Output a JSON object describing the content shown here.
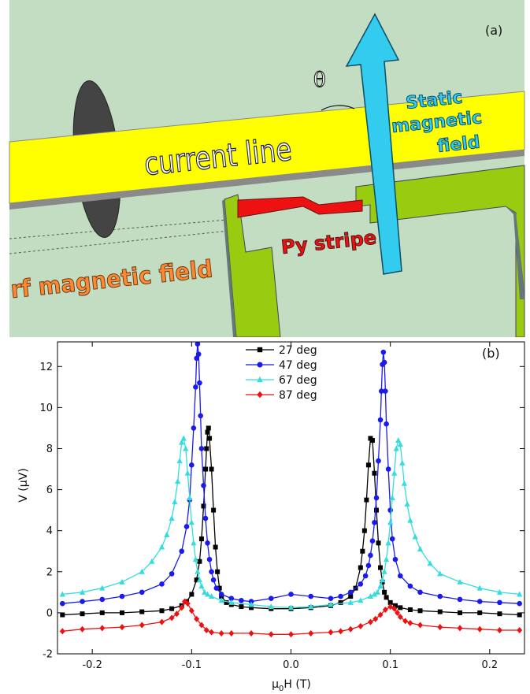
{
  "figure_a": {
    "panel_label": "(a)",
    "labels": {
      "theta": "θ",
      "static_line1": "Static",
      "static_line2": "magnetic",
      "static_line3": "field",
      "current_line": "current line",
      "py_stripe": "Py stripe",
      "rf_field": "rf magnetic field"
    },
    "colors": {
      "background": "#c2ddc2",
      "current_line": "#ffff00",
      "arrow": "#33ccee",
      "stripe": "#ee1111",
      "contacts": "#99cc11",
      "coil": "#444444",
      "rf_text": "#ff8833",
      "static_text": "#33ccee"
    }
  },
  "chart_data": {
    "type": "scatter",
    "panel_label": "(b)",
    "xlabel_main": "μ",
    "xlabel_sub": "0",
    "xlabel_rest": "H (T)",
    "ylabel": "V (μV)",
    "xlim": [
      -0.235,
      0.235
    ],
    "ylim": [
      -2,
      13.2
    ],
    "xticks": [
      -0.2,
      -0.1,
      0.0,
      0.1,
      0.2
    ],
    "xtick_labels": [
      "-0.2",
      "-0.1",
      "0.0",
      "0.1",
      "0.2"
    ],
    "yticks": [
      -2,
      0,
      2,
      4,
      6,
      8,
      10,
      12
    ],
    "ytick_labels": [
      "-2",
      "0",
      "2",
      "4",
      "6",
      "8",
      "10",
      "12"
    ],
    "legend_placement": "top-center",
    "grid": false,
    "series": [
      {
        "name": "27 deg",
        "color": "#000000",
        "marker": "square",
        "x": [
          -0.23,
          -0.21,
          -0.19,
          -0.17,
          -0.15,
          -0.13,
          -0.12,
          -0.11,
          -0.105,
          -0.1,
          -0.095,
          -0.092,
          -0.09,
          -0.088,
          -0.086,
          -0.085,
          -0.084,
          -0.083,
          -0.082,
          -0.08,
          -0.078,
          -0.076,
          -0.074,
          -0.072,
          -0.07,
          -0.065,
          -0.06,
          -0.05,
          -0.04,
          -0.02,
          0.0,
          0.02,
          0.04,
          0.05,
          0.06,
          0.065,
          0.07,
          0.072,
          0.074,
          0.076,
          0.078,
          0.08,
          0.082,
          0.084,
          0.086,
          0.088,
          0.09,
          0.092,
          0.094,
          0.096,
          0.1,
          0.105,
          0.11,
          0.12,
          0.13,
          0.15,
          0.17,
          0.19,
          0.21,
          0.23
        ],
        "y": [
          -0.1,
          -0.05,
          0.0,
          0.0,
          0.05,
          0.1,
          0.2,
          0.35,
          0.55,
          0.9,
          1.6,
          2.5,
          3.6,
          5.2,
          7.0,
          8.0,
          8.8,
          9.0,
          8.5,
          7.0,
          5.0,
          3.2,
          2.0,
          1.2,
          0.8,
          0.5,
          0.4,
          0.3,
          0.25,
          0.2,
          0.2,
          0.25,
          0.35,
          0.5,
          0.8,
          1.2,
          2.2,
          3.0,
          4.0,
          5.5,
          7.2,
          8.5,
          8.4,
          6.8,
          5.0,
          3.4,
          2.2,
          1.5,
          1.0,
          0.75,
          0.5,
          0.35,
          0.25,
          0.15,
          0.1,
          0.05,
          0.0,
          0.0,
          -0.05,
          -0.1
        ]
      },
      {
        "name": "47 deg",
        "color": "#1a1aee",
        "marker": "circle",
        "x": [
          -0.23,
          -0.21,
          -0.19,
          -0.17,
          -0.15,
          -0.13,
          -0.12,
          -0.11,
          -0.105,
          -0.102,
          -0.1,
          -0.098,
          -0.096,
          -0.095,
          -0.094,
          -0.093,
          -0.092,
          -0.091,
          -0.09,
          -0.088,
          -0.086,
          -0.084,
          -0.082,
          -0.08,
          -0.078,
          -0.075,
          -0.07,
          -0.06,
          -0.05,
          -0.04,
          -0.02,
          0.0,
          0.02,
          0.04,
          0.05,
          0.06,
          0.07,
          0.075,
          0.078,
          0.08,
          0.082,
          0.084,
          0.086,
          0.088,
          0.09,
          0.091,
          0.092,
          0.093,
          0.094,
          0.095,
          0.096,
          0.098,
          0.1,
          0.102,
          0.105,
          0.11,
          0.12,
          0.13,
          0.15,
          0.17,
          0.19,
          0.21,
          0.23
        ],
        "y": [
          0.45,
          0.55,
          0.65,
          0.8,
          1.0,
          1.4,
          1.9,
          3.0,
          4.2,
          5.5,
          7.2,
          9.0,
          11.0,
          12.4,
          13.1,
          12.6,
          11.2,
          9.6,
          8.0,
          6.2,
          4.6,
          3.4,
          2.6,
          2.0,
          1.6,
          1.2,
          0.9,
          0.7,
          0.6,
          0.55,
          0.7,
          0.9,
          0.8,
          0.7,
          0.8,
          1.0,
          1.4,
          1.8,
          2.3,
          2.8,
          3.5,
          4.4,
          5.6,
          7.4,
          9.4,
          10.8,
          12.1,
          12.7,
          12.2,
          10.8,
          9.2,
          7.0,
          5.0,
          3.6,
          2.6,
          1.8,
          1.3,
          1.0,
          0.8,
          0.65,
          0.55,
          0.5,
          0.45
        ]
      },
      {
        "name": "67 deg",
        "color": "#33dddd",
        "marker": "triangle",
        "x": [
          -0.23,
          -0.21,
          -0.19,
          -0.17,
          -0.15,
          -0.14,
          -0.13,
          -0.125,
          -0.12,
          -0.117,
          -0.114,
          -0.112,
          -0.11,
          -0.108,
          -0.106,
          -0.104,
          -0.102,
          -0.1,
          -0.098,
          -0.096,
          -0.094,
          -0.092,
          -0.09,
          -0.087,
          -0.084,
          -0.08,
          -0.07,
          -0.06,
          -0.04,
          -0.02,
          0.0,
          0.02,
          0.04,
          0.06,
          0.07,
          0.08,
          0.084,
          0.087,
          0.09,
          0.092,
          0.094,
          0.096,
          0.098,
          0.1,
          0.102,
          0.104,
          0.106,
          0.108,
          0.11,
          0.112,
          0.114,
          0.117,
          0.12,
          0.125,
          0.13,
          0.14,
          0.15,
          0.17,
          0.19,
          0.21,
          0.23
        ],
        "y": [
          0.9,
          1.0,
          1.2,
          1.5,
          2.0,
          2.5,
          3.2,
          3.8,
          4.6,
          5.4,
          6.4,
          7.4,
          8.3,
          8.5,
          8.0,
          6.8,
          5.6,
          4.4,
          3.4,
          2.6,
          2.0,
          1.6,
          1.3,
          1.0,
          0.9,
          0.8,
          0.6,
          0.5,
          0.4,
          0.3,
          0.25,
          0.3,
          0.4,
          0.5,
          0.6,
          0.8,
          0.9,
          1.0,
          1.3,
          1.6,
          2.0,
          2.6,
          3.4,
          4.4,
          5.6,
          6.8,
          8.0,
          8.4,
          8.2,
          7.3,
          6.3,
          5.3,
          4.5,
          3.7,
          3.1,
          2.4,
          1.9,
          1.5,
          1.2,
          1.0,
          0.9
        ]
      },
      {
        "name": "87 deg",
        "color": "#ee1111",
        "marker": "diamond",
        "x": [
          -0.23,
          -0.21,
          -0.19,
          -0.17,
          -0.15,
          -0.13,
          -0.12,
          -0.115,
          -0.11,
          -0.107,
          -0.104,
          -0.1,
          -0.095,
          -0.09,
          -0.085,
          -0.08,
          -0.07,
          -0.06,
          -0.04,
          -0.02,
          0.0,
          0.02,
          0.04,
          0.05,
          0.06,
          0.07,
          0.08,
          0.085,
          0.09,
          0.095,
          0.1,
          0.104,
          0.107,
          0.11,
          0.115,
          0.12,
          0.13,
          0.15,
          0.17,
          0.19,
          0.21,
          0.23
        ],
        "y": [
          -0.9,
          -0.8,
          -0.75,
          -0.7,
          -0.6,
          -0.45,
          -0.25,
          -0.05,
          0.25,
          0.55,
          0.45,
          0.1,
          -0.3,
          -0.6,
          -0.85,
          -0.95,
          -1.0,
          -1.0,
          -1.0,
          -1.05,
          -1.05,
          -1.0,
          -0.95,
          -0.9,
          -0.8,
          -0.65,
          -0.45,
          -0.3,
          -0.1,
          0.15,
          0.3,
          0.2,
          0.0,
          -0.2,
          -0.4,
          -0.5,
          -0.6,
          -0.7,
          -0.75,
          -0.8,
          -0.85,
          -0.85
        ]
      }
    ]
  }
}
